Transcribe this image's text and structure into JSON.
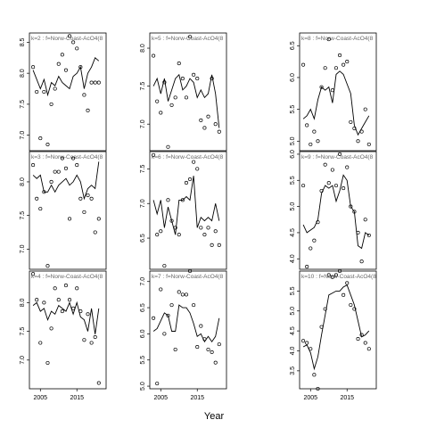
{
  "figure": {
    "xlabel": "Year"
  },
  "chart_data": [
    {
      "type": "scatter",
      "strip": "k=2 : f=Norw-Coast-AcO4(8",
      "x_ticks": [],
      "y_ticks": [
        "7.0",
        "7.5",
        "8.0",
        "8.5"
      ],
      "ylim": [
        6.75,
        8.65
      ],
      "xlim": [
        2002,
        2023
      ],
      "points": {
        "x": [
          2003,
          2004,
          2005,
          2006,
          2007,
          2008,
          2009,
          2010,
          2011,
          2012,
          2013,
          2014,
          2015,
          2016,
          2017,
          2018,
          2019,
          2020,
          2021
        ],
        "y": [
          8.1,
          7.7,
          6.95,
          7.7,
          6.85,
          7.5,
          7.75,
          8.15,
          8.3,
          8.05,
          8.6,
          8.5,
          8.4,
          8.1,
          7.65,
          7.4,
          7.85,
          7.85,
          7.85
        ]
      },
      "fitted": {
        "x": [
          2003,
          2004,
          2005,
          2006,
          2007,
          2008,
          2009,
          2010,
          2011,
          2012,
          2013,
          2014,
          2015,
          2016,
          2017,
          2018,
          2019,
          2020,
          2021
        ],
        "y": [
          8.05,
          7.9,
          7.75,
          7.9,
          7.65,
          7.85,
          7.8,
          7.95,
          7.85,
          7.8,
          7.75,
          7.95,
          8.0,
          8.1,
          7.75,
          8.0,
          8.1,
          8.25,
          8.2
        ]
      }
    },
    {
      "type": "scatter",
      "strip": "k=5 : f=Norw-Coast-AcO4(8",
      "x_ticks": [],
      "y_ticks": [
        "7.0",
        "7.5",
        "8.0"
      ],
      "ylim": [
        6.65,
        8.2
      ],
      "xlim": [
        2002,
        2023
      ],
      "points": {
        "x": [
          2003,
          2004,
          2005,
          2006,
          2007,
          2008,
          2009,
          2010,
          2011,
          2012,
          2013,
          2014,
          2015,
          2016,
          2017,
          2018,
          2019,
          2020,
          2021
        ],
        "y": [
          7.9,
          7.3,
          7.15,
          7.55,
          6.7,
          7.25,
          7.35,
          7.8,
          7.6,
          7.35,
          8.15,
          7.65,
          7.6,
          7.05,
          6.95,
          7.1,
          7.6,
          7.0,
          6.9
        ]
      },
      "fitted": {
        "x": [
          2003,
          2004,
          2005,
          2006,
          2007,
          2008,
          2009,
          2010,
          2011,
          2012,
          2013,
          2014,
          2015,
          2016,
          2017,
          2018,
          2019,
          2020,
          2021
        ],
        "y": [
          7.5,
          7.6,
          7.4,
          7.6,
          7.3,
          7.45,
          7.6,
          7.65,
          7.45,
          7.5,
          7.6,
          7.55,
          7.35,
          7.45,
          7.35,
          7.4,
          7.65,
          7.4,
          6.95
        ]
      }
    },
    {
      "type": "scatter",
      "strip": "k=8 : f=Norw-Coast-AcO4(8",
      "x_ticks": [],
      "y_ticks": [
        "5.0",
        "5.5",
        "6.0",
        "6.5"
      ],
      "ylim": [
        4.85,
        6.7
      ],
      "xlim": [
        2002,
        2023
      ],
      "points": {
        "x": [
          2003,
          2004,
          2005,
          2006,
          2007,
          2008,
          2009,
          2010,
          2011,
          2012,
          2013,
          2014,
          2015,
          2016,
          2017,
          2018,
          2019,
          2020,
          2021
        ],
        "y": [
          6.2,
          5.25,
          4.95,
          5.15,
          5.0,
          5.85,
          6.15,
          6.6,
          5.8,
          6.15,
          6.35,
          6.2,
          6.25,
          5.3,
          5.2,
          5.0,
          5.15,
          5.5,
          4.95
        ]
      },
      "fitted": {
        "x": [
          2003,
          2004,
          2005,
          2006,
          2007,
          2008,
          2009,
          2010,
          2011,
          2012,
          2013,
          2014,
          2015,
          2016,
          2017,
          2018,
          2019,
          2020,
          2021
        ],
        "y": [
          5.35,
          5.4,
          5.5,
          5.35,
          5.65,
          5.85,
          5.8,
          5.85,
          5.6,
          6.05,
          6.1,
          6.05,
          5.9,
          5.75,
          5.25,
          5.1,
          5.2,
          5.3,
          5.4
        ]
      }
    },
    {
      "type": "scatter",
      "strip": "k=3 : f=Norw-Coast-AcO4(8",
      "x_ticks": [],
      "y_ticks": [
        "7.0",
        "7.5",
        "8.0"
      ],
      "ylim": [
        6.7,
        8.45
      ],
      "xlim": [
        2002,
        2023
      ],
      "points": {
        "x": [
          2003,
          2004,
          2005,
          2006,
          2007,
          2008,
          2009,
          2010,
          2011,
          2012,
          2013,
          2014,
          2015,
          2016,
          2017,
          2018,
          2019,
          2020,
          2021
        ],
        "y": [
          8.25,
          7.75,
          7.6,
          7.85,
          6.75,
          8.0,
          8.15,
          8.15,
          8.35,
          8.2,
          7.45,
          8.35,
          8.25,
          7.75,
          7.55,
          7.8,
          7.75,
          7.25,
          7.45
        ]
      },
      "fitted": {
        "x": [
          2003,
          2004,
          2005,
          2006,
          2007,
          2008,
          2009,
          2010,
          2011,
          2012,
          2013,
          2014,
          2015,
          2016,
          2017,
          2018,
          2019,
          2020,
          2021
        ],
        "y": [
          8.1,
          8.05,
          8.1,
          7.85,
          7.85,
          7.95,
          7.85,
          7.95,
          8.0,
          8.05,
          7.95,
          8.0,
          8.1,
          8.0,
          7.75,
          7.9,
          7.95,
          7.9,
          8.3
        ]
      }
    },
    {
      "type": "scatter",
      "strip": "k=6 : f=Norw-Coast-AcO4(8",
      "x_ticks": [],
      "y_ticks": [
        "6.5",
        "7.0",
        "7.5"
      ],
      "ylim": [
        6.05,
        7.75
      ],
      "xlim": [
        2002,
        2023
      ],
      "points": {
        "x": [
          2003,
          2004,
          2005,
          2006,
          2007,
          2008,
          2009,
          2010,
          2011,
          2012,
          2013,
          2014,
          2015,
          2016,
          2017,
          2018,
          2019,
          2020,
          2021
        ],
        "y": [
          7.7,
          6.55,
          6.6,
          6.1,
          7.05,
          6.75,
          6.65,
          6.55,
          7.05,
          7.3,
          7.35,
          7.6,
          7.5,
          6.65,
          6.55,
          6.65,
          6.4,
          6.6,
          6.4
        ]
      },
      "fitted": {
        "x": [
          2003,
          2004,
          2005,
          2006,
          2007,
          2008,
          2009,
          2010,
          2011,
          2012,
          2013,
          2014,
          2015,
          2016,
          2017,
          2018,
          2019,
          2020,
          2021
        ],
        "y": [
          7.05,
          6.85,
          7.05,
          6.65,
          6.95,
          6.75,
          6.55,
          7.05,
          7.05,
          7.1,
          7.05,
          7.4,
          6.65,
          6.8,
          6.75,
          6.8,
          6.75,
          7.0,
          6.75
        ]
      }
    },
    {
      "type": "scatter",
      "strip": "k=9 : f=Norw-Coast-AcO4(8",
      "x_ticks": [],
      "y_ticks": [
        "4.0",
        "4.5",
        "5.0",
        "5.5",
        "6.0"
      ],
      "ylim": [
        3.8,
        6.05
      ],
      "xlim": [
        2002,
        2023
      ],
      "points": {
        "x": [
          2003,
          2004,
          2005,
          2006,
          2007,
          2008,
          2009,
          2010,
          2011,
          2012,
          2013,
          2014,
          2015,
          2016,
          2017,
          2018,
          2019,
          2020,
          2021
        ],
        "y": [
          5.4,
          3.85,
          4.2,
          4.35,
          4.7,
          5.3,
          5.8,
          5.45,
          5.7,
          5.4,
          6.0,
          5.35,
          5.75,
          5.0,
          4.9,
          4.5,
          3.95,
          4.75,
          4.45
        ]
      },
      "fitted": {
        "x": [
          2003,
          2004,
          2005,
          2006,
          2007,
          2008,
          2009,
          2010,
          2011,
          2012,
          2013,
          2014,
          2015,
          2016,
          2017,
          2018,
          2019,
          2020,
          2021
        ],
        "y": [
          4.65,
          4.5,
          4.55,
          4.6,
          4.75,
          5.25,
          5.4,
          5.35,
          5.4,
          5.1,
          5.3,
          5.6,
          5.5,
          5.0,
          4.9,
          4.25,
          4.2,
          4.5,
          4.45
        ]
      }
    },
    {
      "type": "scatter",
      "strip": "k=4 : f=Norw-Coast-AcO4(8",
      "x_ticks": [
        "2005",
        "2015"
      ],
      "x_tick_values": [
        2005,
        2015
      ],
      "y_ticks": [
        "7.0",
        "7.5",
        "8.0"
      ],
      "ylim": [
        6.5,
        8.55
      ],
      "xlim": [
        2002,
        2023
      ],
      "points": {
        "x": [
          2003,
          2004,
          2005,
          2006,
          2007,
          2008,
          2009,
          2010,
          2011,
          2012,
          2013,
          2014,
          2015,
          2016,
          2017,
          2018,
          2019,
          2020,
          2021
        ],
        "y": [
          8.5,
          8.05,
          7.3,
          8.0,
          6.95,
          7.55,
          8.25,
          8.05,
          7.85,
          8.3,
          8.05,
          7.9,
          8.25,
          7.85,
          7.35,
          7.8,
          7.3,
          7.4,
          6.6
        ]
      },
      "fitted": {
        "x": [
          2003,
          2004,
          2005,
          2006,
          2007,
          2008,
          2009,
          2010,
          2011,
          2012,
          2013,
          2014,
          2015,
          2016,
          2017,
          2018,
          2019,
          2020,
          2021
        ],
        "y": [
          7.95,
          8.0,
          7.85,
          7.9,
          7.7,
          7.85,
          7.8,
          7.95,
          7.9,
          7.85,
          8.0,
          7.8,
          8.0,
          7.75,
          7.7,
          7.5,
          7.9,
          7.45,
          7.9
        ]
      }
    },
    {
      "type": "scatter",
      "strip": "k=7 : f=Norw-Coast-AcO4(8",
      "x_ticks": [
        "2005",
        "2015"
      ],
      "x_tick_values": [
        2005,
        2015
      ],
      "y_ticks": [
        "5.0",
        "5.5",
        "6.0",
        "6.5",
        "7.0"
      ],
      "ylim": [
        4.95,
        7.2
      ],
      "xlim": [
        2002,
        2023
      ],
      "points": {
        "x": [
          2003,
          2004,
          2005,
          2006,
          2007,
          2008,
          2009,
          2010,
          2011,
          2012,
          2013,
          2014,
          2015,
          2016,
          2017,
          2018,
          2019,
          2020,
          2021
        ],
        "y": [
          6.3,
          5.05,
          6.85,
          6.0,
          6.35,
          6.55,
          5.7,
          6.8,
          6.75,
          6.75,
          7.2,
          6.55,
          5.75,
          6.15,
          5.9,
          5.7,
          5.65,
          5.45,
          5.8
        ]
      },
      "fitted": {
        "x": [
          2003,
          2004,
          2005,
          2006,
          2007,
          2008,
          2009,
          2010,
          2011,
          2012,
          2013,
          2014,
          2015,
          2016,
          2017,
          2018,
          2019,
          2020,
          2021
        ],
        "y": [
          6.05,
          6.1,
          6.25,
          6.4,
          6.35,
          6.05,
          6.05,
          6.55,
          6.5,
          6.5,
          6.4,
          6.2,
          5.95,
          6.0,
          5.85,
          5.95,
          5.85,
          5.95,
          6.3
        ]
      }
    },
    {
      "type": "scatter",
      "strip": "k=10 : f=Norw-Coast-AcO4(8",
      "x_ticks": [
        "2005",
        "2015"
      ],
      "x_tick_values": [
        2005,
        2015
      ],
      "y_ticks": [
        "3.5",
        "4.0",
        "4.5",
        "5.0",
        "5.5"
      ],
      "ylim": [
        3.05,
        6.0
      ],
      "xlim": [
        2002,
        2023
      ],
      "points": {
        "x": [
          2003,
          2004,
          2005,
          2006,
          2007,
          2008,
          2009,
          2010,
          2011,
          2012,
          2013,
          2014,
          2015,
          2016,
          2017,
          2018,
          2019,
          2020,
          2021
        ],
        "y": [
          4.25,
          4.2,
          4.05,
          3.4,
          3.05,
          4.6,
          5.05,
          5.9,
          5.85,
          5.9,
          6.0,
          5.4,
          5.7,
          5.15,
          5.05,
          4.3,
          4.4,
          4.2,
          4.05
        ]
      },
      "fitted": {
        "x": [
          2003,
          2004,
          2005,
          2006,
          2007,
          2008,
          2009,
          2010,
          2011,
          2012,
          2013,
          2014,
          2015,
          2016,
          2017,
          2018,
          2019,
          2020,
          2021
        ],
        "y": [
          4.1,
          4.15,
          3.95,
          3.55,
          3.85,
          4.4,
          4.9,
          5.4,
          5.45,
          5.5,
          5.5,
          5.6,
          5.65,
          5.4,
          5.15,
          4.75,
          4.35,
          4.4,
          4.5
        ]
      }
    }
  ]
}
